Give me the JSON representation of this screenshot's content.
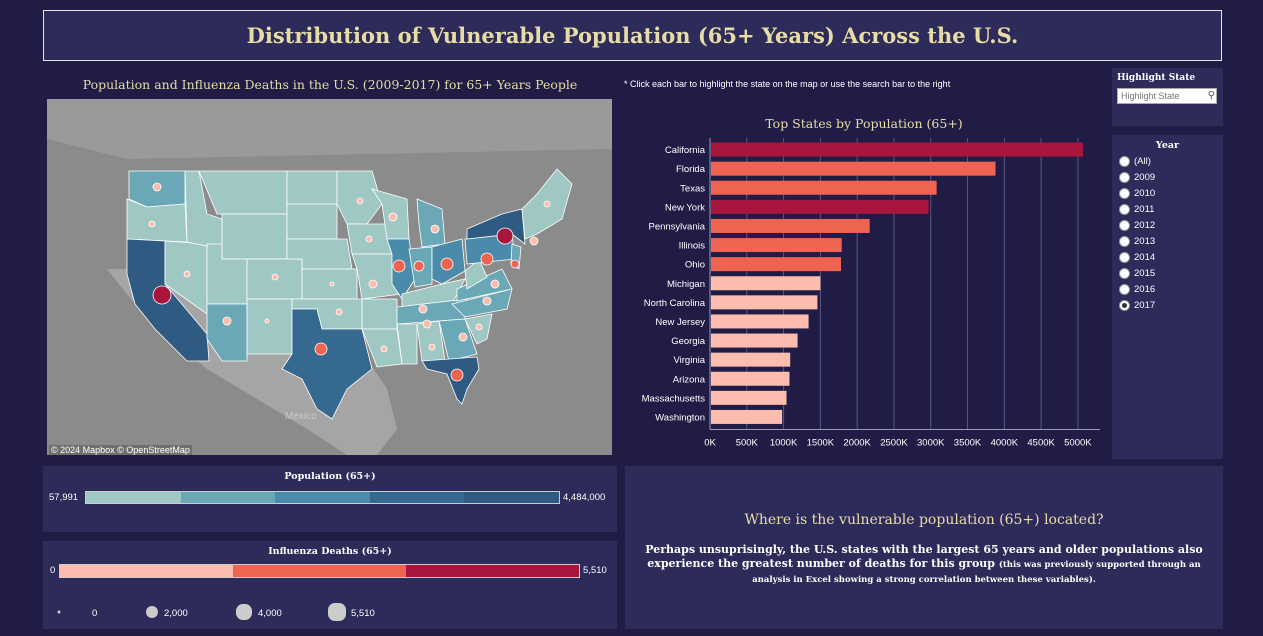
{
  "title": "Distribution of Vulnerable Population (65+ Years) Across the U.S.",
  "map": {
    "title": "Population and Influenza Deaths in the U.S. (2009-2017) for 65+ Years People",
    "credit": "© 2024 Mapbox  © OpenStreetMap",
    "label_mexico": "Mexico"
  },
  "note": "* Click each bar to highlight the state on the map or use the search bar to the right",
  "highlight": {
    "label": "Highlight State",
    "placeholder": "Highlight State"
  },
  "year_filter": {
    "label": "Year",
    "options": [
      "(All)",
      "2009",
      "2010",
      "2011",
      "2012",
      "2013",
      "2014",
      "2015",
      "2016",
      "2017"
    ],
    "selected": "2017"
  },
  "chart_data": {
    "type": "bar",
    "orientation": "horizontal",
    "title": "Top States by Population (65+)",
    "categories": [
      "California",
      "Florida",
      "Texas",
      "New York",
      "Pennsylvania",
      "Illinois",
      "Ohio",
      "Michigan",
      "North Carolina",
      "New Jersey",
      "Georgia",
      "Virginia",
      "Arizona",
      "Massachusetts",
      "Washington"
    ],
    "values": [
      5070000,
      3880000,
      3080000,
      2970000,
      2170000,
      1790000,
      1780000,
      1500000,
      1460000,
      1340000,
      1190000,
      1090000,
      1080000,
      1040000,
      980000
    ],
    "bar_colors": [
      "#a8163e",
      "#ef6450",
      "#ef6450",
      "#a8163e",
      "#ef6450",
      "#ef6450",
      "#ef6450",
      "#fcbcae",
      "#fcbcae",
      "#fcbcae",
      "#fcbcae",
      "#fcbcae",
      "#fcbcae",
      "#fcbcae",
      "#fcbcae"
    ],
    "xlim": [
      0,
      5300000
    ],
    "xticks": [
      0,
      500000,
      1000000,
      1500000,
      2000000,
      2500000,
      3000000,
      3500000,
      4000000,
      4500000,
      5000000
    ],
    "xtick_labels": [
      "0K",
      "500K",
      "1000K",
      "1500K",
      "2000K",
      "2500K",
      "3000K",
      "3500K",
      "4000K",
      "4500K",
      "5000K"
    ],
    "grid": "vertical"
  },
  "legend_population": {
    "title": "Population (65+)",
    "min": "57,991",
    "max": "4,484,000",
    "colors": [
      "#9fc7c4",
      "#6aa8b8",
      "#4a8aaa",
      "#35698f",
      "#2f5a82"
    ]
  },
  "legend_deaths": {
    "title": "Influenza Deaths (65+)",
    "min": "0",
    "max": "5,510",
    "colors": [
      "#fcbcae",
      "#ef6450",
      "#a8163e"
    ],
    "size_labels": [
      "0",
      "2,000",
      "4,000",
      "5,510"
    ]
  },
  "insight": {
    "heading": "Where is the vulnerable population (65+) located?",
    "body": "Perhaps unsuprisingly, the U.S. states with the largest 65 years and older populations also experience the greatest number of deaths for this group",
    "note": "(this was previously supported through an analysis in Excel showing a strong correlation between these variables)."
  },
  "colors": {
    "background": "#201c45",
    "panel": "#2d2b5a",
    "accent_text": "#e8dca6"
  }
}
